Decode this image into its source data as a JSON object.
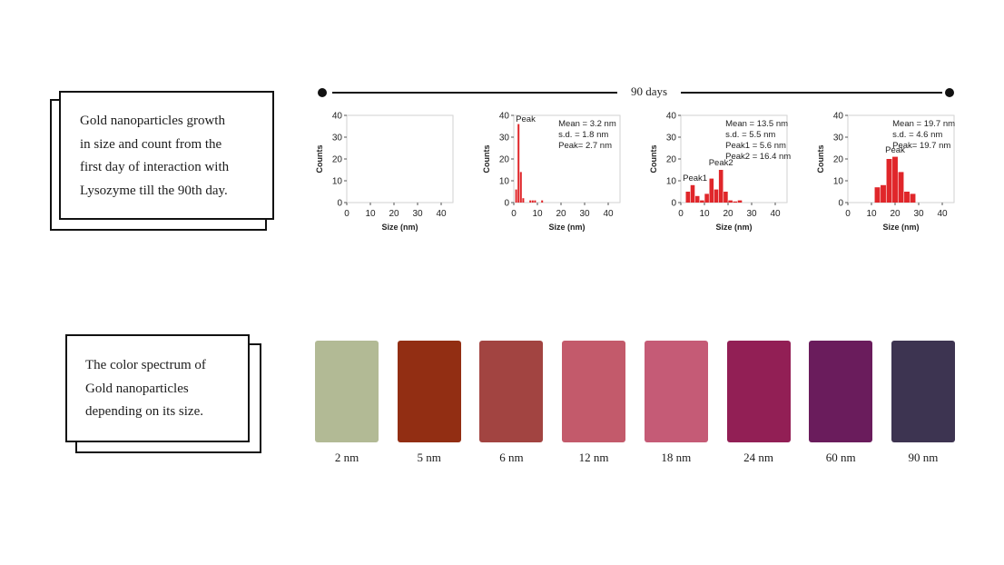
{
  "cards": {
    "growth": {
      "lines": [
        "Gold nanoparticles growth",
        "in size and count from the",
        "first day of interaction with",
        "Lysozyme till the 90th day."
      ]
    },
    "spectrum": {
      "lines": [
        "The color spectrum of",
        "Gold nanoparticles",
        "depending on its size."
      ]
    }
  },
  "timeline": {
    "label": "90 days"
  },
  "chart_data": [
    {
      "type": "bar",
      "xlabel": "Size (nm)",
      "ylabel": "Counts",
      "xlim": [
        0,
        45
      ],
      "ylim": [
        0,
        40
      ],
      "xticks": [
        0,
        10,
        20,
        30,
        40
      ],
      "yticks": [
        0,
        10,
        20,
        30,
        40
      ],
      "bin_width": 1,
      "bins": [],
      "annotations": [],
      "stats": []
    },
    {
      "type": "bar",
      "xlabel": "Size (nm)",
      "ylabel": "Counts",
      "xlim": [
        0,
        45
      ],
      "ylim": [
        0,
        40
      ],
      "xticks": [
        0,
        10,
        20,
        30,
        40
      ],
      "yticks": [
        0,
        10,
        20,
        30,
        40
      ],
      "bin_width": 1,
      "bins": [
        {
          "x": 1,
          "count": 6
        },
        {
          "x": 2,
          "count": 36
        },
        {
          "x": 3,
          "count": 14
        },
        {
          "x": 4,
          "count": 2
        },
        {
          "x": 7,
          "count": 1
        },
        {
          "x": 8,
          "count": 1
        },
        {
          "x": 9,
          "count": 1
        },
        {
          "x": 12,
          "count": 1
        }
      ],
      "annotations": [
        {
          "text": "Peak",
          "x": 5,
          "y": 37
        }
      ],
      "stats": [
        "Mean = 3.2 nm",
        "s.d. = 1.8 nm",
        "Peak= 2.7 nm"
      ]
    },
    {
      "type": "bar",
      "xlabel": "Size (nm)",
      "ylabel": "Counts",
      "xlim": [
        0,
        45
      ],
      "ylim": [
        0,
        40
      ],
      "xticks": [
        0,
        10,
        20,
        30,
        40
      ],
      "yticks": [
        0,
        10,
        20,
        30,
        40
      ],
      "bin_width": 2,
      "bins": [
        {
          "x": 3,
          "count": 5
        },
        {
          "x": 5,
          "count": 8
        },
        {
          "x": 7,
          "count": 3
        },
        {
          "x": 9,
          "count": 1
        },
        {
          "x": 11,
          "count": 4
        },
        {
          "x": 13,
          "count": 11
        },
        {
          "x": 15,
          "count": 6
        },
        {
          "x": 17,
          "count": 15
        },
        {
          "x": 19,
          "count": 5
        },
        {
          "x": 21,
          "count": 1
        },
        {
          "x": 23,
          "count": 0.5
        },
        {
          "x": 25,
          "count": 1
        }
      ],
      "annotations": [
        {
          "text": "Peak1",
          "x": 6,
          "y": 10
        },
        {
          "text": "Peak2",
          "x": 17,
          "y": 17
        }
      ],
      "stats": [
        "Mean = 13.5 nm",
        "s.d. = 5.5 nm",
        "Peak1 = 5.6 nm",
        "Peak2 = 16.4 nm"
      ]
    },
    {
      "type": "bar",
      "xlabel": "Size (nm)",
      "ylabel": "Counts",
      "xlim": [
        0,
        45
      ],
      "ylim": [
        0,
        40
      ],
      "xticks": [
        0,
        10,
        20,
        30,
        40
      ],
      "yticks": [
        0,
        10,
        20,
        30,
        40
      ],
      "bin_width": 2.5,
      "bins": [
        {
          "x": 12.5,
          "count": 7
        },
        {
          "x": 15,
          "count": 8
        },
        {
          "x": 17.5,
          "count": 20
        },
        {
          "x": 20,
          "count": 21
        },
        {
          "x": 22.5,
          "count": 14
        },
        {
          "x": 25,
          "count": 5
        },
        {
          "x": 27.5,
          "count": 4
        }
      ],
      "annotations": [
        {
          "text": "Peak",
          "x": 20,
          "y": 23
        }
      ],
      "stats": [
        "Mean = 19.7 nm",
        "s.d. = 4.6 nm",
        "Peak= 19.7 nm"
      ]
    }
  ],
  "spectrum": [
    {
      "label": "2 nm",
      "color": "#b2ba95"
    },
    {
      "label": "5 nm",
      "color": "#922e13"
    },
    {
      "label": "6 nm",
      "color": "#a24441"
    },
    {
      "label": "12 nm",
      "color": "#c35a6b"
    },
    {
      "label": "18 nm",
      "color": "#c55b76"
    },
    {
      "label": "24 nm",
      "color": "#921f55"
    },
    {
      "label": "60 nm",
      "color": "#6a1c5c"
    },
    {
      "label": "90 nm",
      "color": "#3d3451"
    }
  ],
  "bar_color": "#e0262a"
}
